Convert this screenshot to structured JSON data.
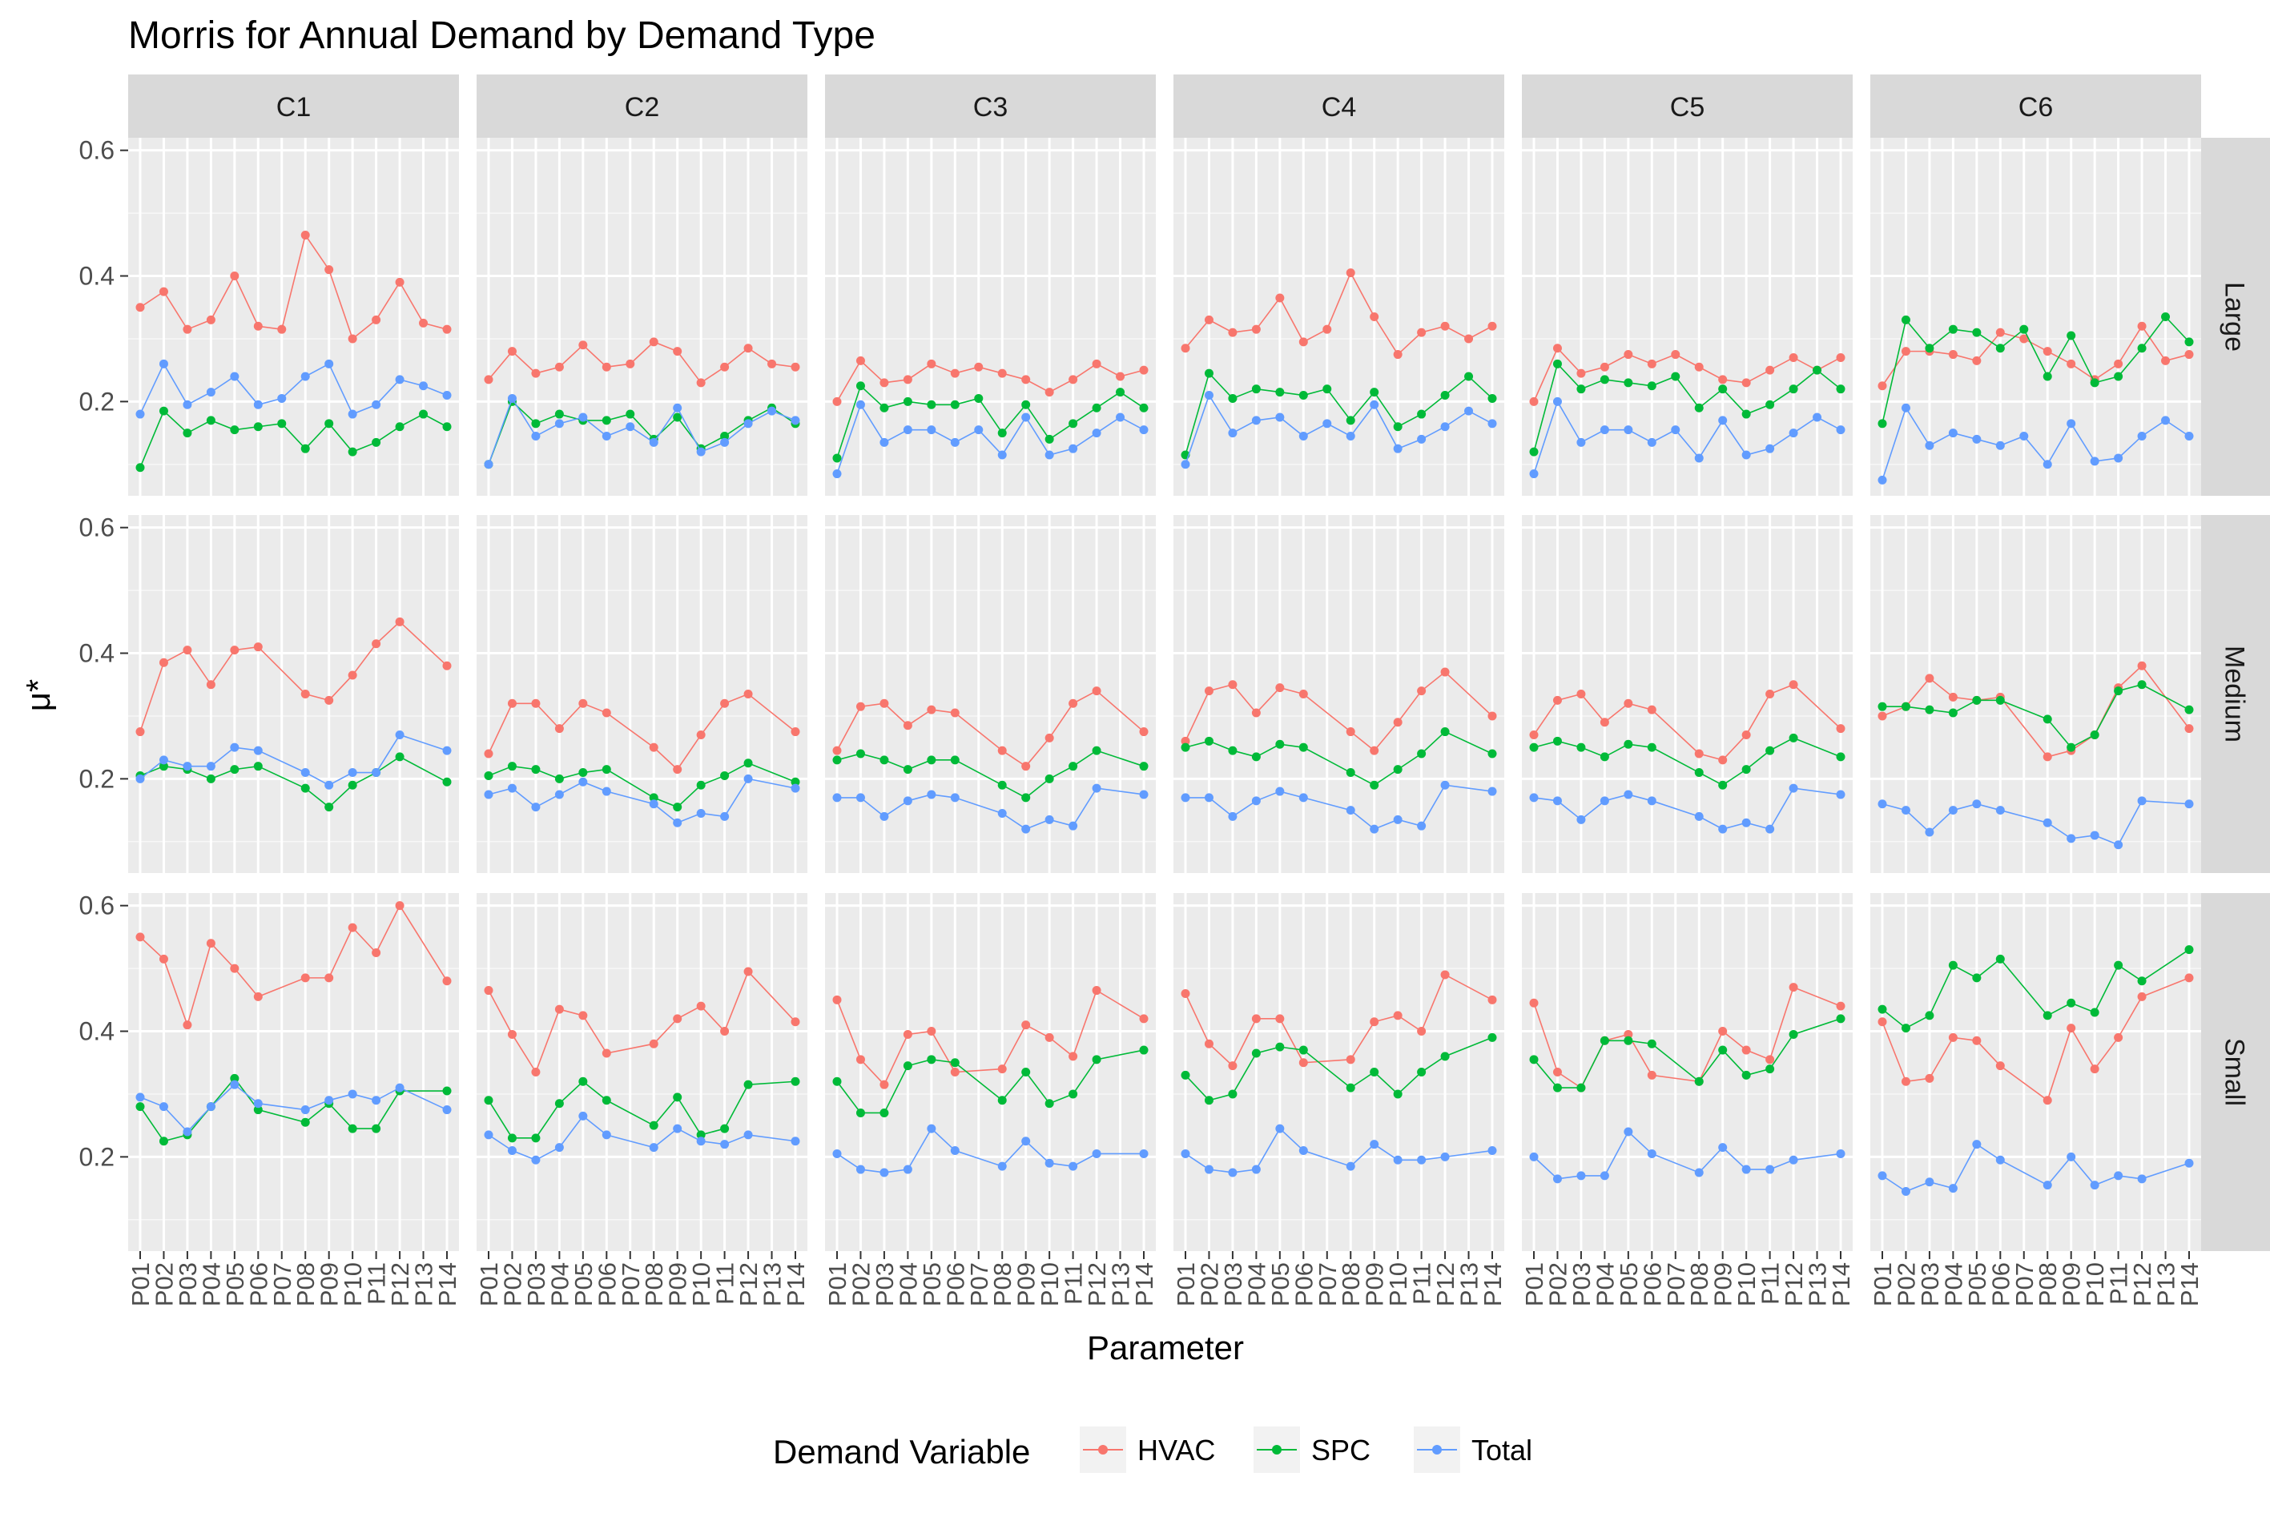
{
  "title": "Morris for Annual Demand by Demand Type",
  "xlabel": "Parameter",
  "ylabel": "μ*",
  "legend": {
    "title": "Demand Variable",
    "placement": "bottom",
    "items": [
      "HVAC",
      "SPC",
      "Total"
    ]
  },
  "colors": {
    "HVAC": "#F8766D",
    "SPC": "#00BA38",
    "Total": "#619CFF",
    "panel_bg": "#EBEBEB",
    "strip_bg": "#D9D9D9"
  },
  "chart_data": {
    "type": "line",
    "facet_columns": [
      "C1",
      "C2",
      "C3",
      "C4",
      "C5",
      "C6"
    ],
    "facet_rows": [
      "Large",
      "Medium",
      "Small"
    ],
    "x": [
      "P01",
      "P02",
      "P03",
      "P04",
      "P05",
      "P06",
      "P07",
      "P08",
      "P09",
      "P10",
      "P11",
      "P12",
      "P13",
      "P14"
    ],
    "ylim": [
      0.05,
      0.62
    ],
    "yticks": [
      0.2,
      0.4,
      0.6
    ],
    "grid": true,
    "panels": {
      "Large": {
        "C1": {
          "HVAC": [
            0.35,
            0.375,
            0.315,
            0.33,
            0.4,
            0.32,
            0.315,
            0.465,
            0.41,
            0.3,
            0.33,
            0.39,
            0.325,
            0.315
          ],
          "SPC": [
            0.095,
            0.185,
            0.15,
            0.17,
            0.155,
            0.16,
            0.165,
            0.125,
            0.165,
            0.12,
            0.135,
            0.16,
            0.18,
            0.16
          ],
          "Total": [
            0.18,
            0.26,
            0.195,
            0.215,
            0.24,
            0.195,
            0.205,
            0.24,
            0.26,
            0.18,
            0.195,
            0.235,
            0.225,
            0.21
          ]
        },
        "C2": {
          "HVAC": [
            0.235,
            0.28,
            0.245,
            0.255,
            0.29,
            0.255,
            0.26,
            0.295,
            0.28,
            0.23,
            0.255,
            0.285,
            0.26,
            0.255
          ],
          "SPC": [
            0.1,
            0.2,
            0.165,
            0.18,
            0.17,
            0.17,
            0.18,
            0.14,
            0.175,
            0.125,
            0.145,
            0.17,
            0.19,
            0.165
          ],
          "Total": [
            0.1,
            0.205,
            0.145,
            0.165,
            0.175,
            0.145,
            0.16,
            0.135,
            0.19,
            0.12,
            0.135,
            0.165,
            0.185,
            0.17
          ]
        },
        "C3": {
          "HVAC": [
            0.2,
            0.265,
            0.23,
            0.235,
            0.26,
            0.245,
            0.255,
            0.245,
            0.235,
            0.215,
            0.235,
            0.26,
            0.24,
            0.25
          ],
          "SPC": [
            0.11,
            0.225,
            0.19,
            0.2,
            0.195,
            0.195,
            0.205,
            0.15,
            0.195,
            0.14,
            0.165,
            0.19,
            0.215,
            0.19
          ],
          "Total": [
            0.085,
            0.195,
            0.135,
            0.155,
            0.155,
            0.135,
            0.155,
            0.115,
            0.175,
            0.115,
            0.125,
            0.15,
            0.175,
            0.155
          ]
        },
        "C4": {
          "HVAC": [
            0.285,
            0.33,
            0.31,
            0.315,
            0.365,
            0.295,
            0.315,
            0.405,
            0.335,
            0.275,
            0.31,
            0.32,
            0.3,
            0.32
          ],
          "SPC": [
            0.115,
            0.245,
            0.205,
            0.22,
            0.215,
            0.21,
            0.22,
            0.17,
            0.215,
            0.16,
            0.18,
            0.21,
            0.24,
            0.205
          ],
          "Total": [
            0.1,
            0.21,
            0.15,
            0.17,
            0.175,
            0.145,
            0.165,
            0.145,
            0.195,
            0.125,
            0.14,
            0.16,
            0.185,
            0.165
          ]
        },
        "C5": {
          "HVAC": [
            0.2,
            0.285,
            0.245,
            0.255,
            0.275,
            0.26,
            0.275,
            0.255,
            0.235,
            0.23,
            0.25,
            0.27,
            0.25,
            0.27
          ],
          "SPC": [
            0.12,
            0.26,
            0.22,
            0.235,
            0.23,
            0.225,
            0.24,
            0.19,
            0.22,
            0.18,
            0.195,
            0.22,
            0.25,
            0.22
          ],
          "Total": [
            0.085,
            0.2,
            0.135,
            0.155,
            0.155,
            0.135,
            0.155,
            0.11,
            0.17,
            0.115,
            0.125,
            0.15,
            0.175,
            0.155
          ]
        },
        "C6": {
          "HVAC": [
            0.225,
            0.28,
            0.28,
            0.275,
            0.265,
            0.31,
            0.3,
            0.28,
            0.26,
            0.235,
            0.26,
            0.32,
            0.265,
            0.275
          ],
          "SPC": [
            0.165,
            0.33,
            0.285,
            0.315,
            0.31,
            0.285,
            0.315,
            0.24,
            0.305,
            0.23,
            0.24,
            0.285,
            0.335,
            0.295
          ],
          "Total": [
            0.075,
            0.19,
            0.13,
            0.15,
            0.14,
            0.13,
            0.145,
            0.1,
            0.165,
            0.105,
            0.11,
            0.145,
            0.17,
            0.145
          ]
        }
      },
      "Medium": {
        "C1": {
          "HVAC": [
            0.275,
            0.385,
            0.405,
            0.35,
            0.405,
            0.41,
            0.335,
            0.325,
            0.365,
            0.415,
            0.45,
            0.38
          ],
          "SPC": [
            0.205,
            0.22,
            0.215,
            0.2,
            0.215,
            0.22,
            0.185,
            0.155,
            0.19,
            0.21,
            0.235,
            0.195
          ],
          "Total": [
            0.2,
            0.23,
            0.22,
            0.22,
            0.25,
            0.245,
            0.21,
            0.19,
            0.21,
            0.21,
            0.27,
            0.245
          ]
        },
        "C2": {
          "HVAC": [
            0.24,
            0.32,
            0.32,
            0.28,
            0.32,
            0.305,
            0.25,
            0.215,
            0.27,
            0.32,
            0.335,
            0.275
          ],
          "SPC": [
            0.205,
            0.22,
            0.215,
            0.2,
            0.21,
            0.215,
            0.17,
            0.155,
            0.19,
            0.205,
            0.225,
            0.195
          ],
          "Total": [
            0.175,
            0.185,
            0.155,
            0.175,
            0.195,
            0.18,
            0.16,
            0.13,
            0.145,
            0.14,
            0.2,
            0.185
          ]
        },
        "C3": {
          "HVAC": [
            0.245,
            0.315,
            0.32,
            0.285,
            0.31,
            0.305,
            0.245,
            0.22,
            0.265,
            0.32,
            0.34,
            0.275
          ],
          "SPC": [
            0.23,
            0.24,
            0.23,
            0.215,
            0.23,
            0.23,
            0.19,
            0.17,
            0.2,
            0.22,
            0.245,
            0.22
          ],
          "Total": [
            0.17,
            0.17,
            0.14,
            0.165,
            0.175,
            0.17,
            0.145,
            0.12,
            0.135,
            0.125,
            0.185,
            0.175
          ]
        },
        "C4": {
          "HVAC": [
            0.26,
            0.34,
            0.35,
            0.305,
            0.345,
            0.335,
            0.275,
            0.245,
            0.29,
            0.34,
            0.37,
            0.3
          ],
          "SPC": [
            0.25,
            0.26,
            0.245,
            0.235,
            0.255,
            0.25,
            0.21,
            0.19,
            0.215,
            0.24,
            0.275,
            0.24
          ],
          "Total": [
            0.17,
            0.17,
            0.14,
            0.165,
            0.18,
            0.17,
            0.15,
            0.12,
            0.135,
            0.125,
            0.19,
            0.18
          ]
        },
        "C5": {
          "HVAC": [
            0.27,
            0.325,
            0.335,
            0.29,
            0.32,
            0.31,
            0.24,
            0.23,
            0.27,
            0.335,
            0.35,
            0.28
          ],
          "SPC": [
            0.25,
            0.26,
            0.25,
            0.235,
            0.255,
            0.25,
            0.21,
            0.19,
            0.215,
            0.245,
            0.265,
            0.235
          ],
          "Total": [
            0.17,
            0.165,
            0.135,
            0.165,
            0.175,
            0.165,
            0.14,
            0.12,
            0.13,
            0.12,
            0.185,
            0.175
          ]
        },
        "C6": {
          "HVAC": [
            0.3,
            0.315,
            0.36,
            0.33,
            0.325,
            0.33,
            0.235,
            0.245,
            0.27,
            0.345,
            0.38,
            0.28
          ],
          "SPC": [
            0.315,
            0.315,
            0.31,
            0.305,
            0.325,
            0.325,
            0.295,
            0.25,
            0.27,
            0.34,
            0.35,
            0.31
          ],
          "Total": [
            0.16,
            0.15,
            0.115,
            0.15,
            0.16,
            0.15,
            0.13,
            0.105,
            0.11,
            0.095,
            0.165,
            0.16
          ]
        }
      },
      "Small": {
        "C1": {
          "HVAC": [
            0.55,
            0.515,
            0.41,
            0.54,
            0.5,
            0.455,
            0.485,
            0.485,
            0.565,
            0.525,
            0.6,
            0.48
          ],
          "SPC": [
            0.28,
            0.225,
            0.235,
            0.28,
            0.325,
            0.275,
            0.255,
            0.285,
            0.245,
            0.245,
            0.305,
            0.305
          ],
          "Total": [
            0.295,
            0.28,
            0.24,
            0.28,
            0.315,
            0.285,
            0.275,
            0.29,
            0.3,
            0.29,
            0.31,
            0.275
          ]
        },
        "C2": {
          "HVAC": [
            0.465,
            0.395,
            0.335,
            0.435,
            0.425,
            0.365,
            0.38,
            0.42,
            0.44,
            0.4,
            0.495,
            0.415
          ],
          "SPC": [
            0.29,
            0.23,
            0.23,
            0.285,
            0.32,
            0.29,
            0.25,
            0.295,
            0.235,
            0.245,
            0.315,
            0.32
          ],
          "Total": [
            0.235,
            0.21,
            0.195,
            0.215,
            0.265,
            0.235,
            0.215,
            0.245,
            0.225,
            0.22,
            0.235,
            0.225
          ]
        },
        "C3": {
          "HVAC": [
            0.45,
            0.355,
            0.315,
            0.395,
            0.4,
            0.335,
            0.34,
            0.41,
            0.39,
            0.36,
            0.465,
            0.42
          ],
          "SPC": [
            0.32,
            0.27,
            0.27,
            0.345,
            0.355,
            0.35,
            0.29,
            0.335,
            0.285,
            0.3,
            0.355,
            0.37
          ],
          "Total": [
            0.205,
            0.18,
            0.175,
            0.18,
            0.245,
            0.21,
            0.185,
            0.225,
            0.19,
            0.185,
            0.205,
            0.205
          ]
        },
        "C4": {
          "HVAC": [
            0.46,
            0.38,
            0.345,
            0.42,
            0.42,
            0.35,
            0.355,
            0.415,
            0.425,
            0.4,
            0.49,
            0.45
          ],
          "SPC": [
            0.33,
            0.29,
            0.3,
            0.365,
            0.375,
            0.37,
            0.31,
            0.335,
            0.3,
            0.335,
            0.36,
            0.39
          ],
          "Total": [
            0.205,
            0.18,
            0.175,
            0.18,
            0.245,
            0.21,
            0.185,
            0.22,
            0.195,
            0.195,
            0.2,
            0.21
          ]
        },
        "C5": {
          "HVAC": [
            0.445,
            0.335,
            0.31,
            0.385,
            0.395,
            0.33,
            0.32,
            0.4,
            0.37,
            0.355,
            0.47,
            0.44
          ],
          "SPC": [
            0.355,
            0.31,
            0.31,
            0.385,
            0.385,
            0.38,
            0.32,
            0.37,
            0.33,
            0.34,
            0.395,
            0.42
          ],
          "Total": [
            0.2,
            0.165,
            0.17,
            0.17,
            0.24,
            0.205,
            0.175,
            0.215,
            0.18,
            0.18,
            0.195,
            0.205
          ]
        },
        "C6": {
          "HVAC": [
            0.415,
            0.32,
            0.325,
            0.39,
            0.385,
            0.345,
            0.29,
            0.405,
            0.34,
            0.39,
            0.455,
            0.485
          ],
          "SPC": [
            0.435,
            0.405,
            0.425,
            0.505,
            0.485,
            0.515,
            0.425,
            0.445,
            0.43,
            0.505,
            0.48,
            0.53
          ],
          "Total": [
            0.17,
            0.145,
            0.16,
            0.15,
            0.22,
            0.195,
            0.155,
            0.2,
            0.155,
            0.17,
            0.165,
            0.19
          ]
        }
      }
    },
    "small_medium_x": [
      "P01",
      "P02",
      "P03",
      "P04",
      "P05",
      "P06",
      "P08",
      "P09",
      "P10",
      "P11",
      "P12",
      "P14"
    ]
  }
}
